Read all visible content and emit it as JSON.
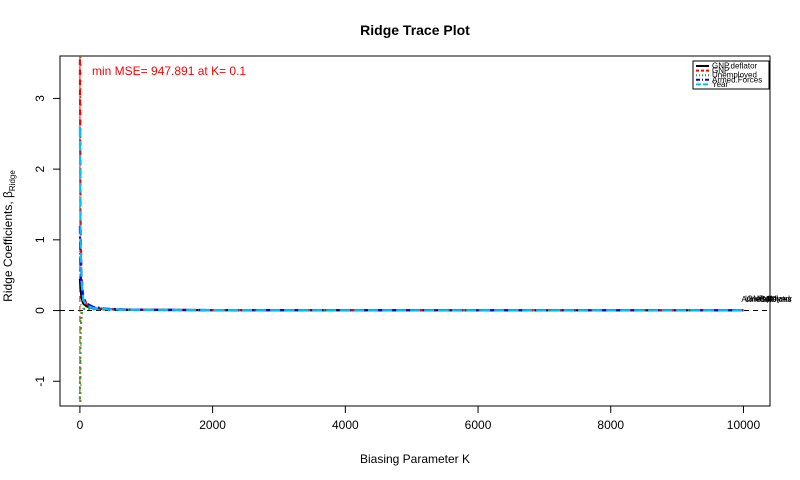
{
  "chart_data": {
    "type": "line",
    "title": "Ridge Trace Plot",
    "xlabel": "Biasing Parameter K",
    "ylabel_main": "Ridge Coefficients, ",
    "ylabel_beta": "β",
    "ylabel_sub": "Ridge",
    "xlim": [
      -300,
      10400
    ],
    "ylim": [
      -1.35,
      3.6
    ],
    "xticks": [
      0,
      2000,
      4000,
      6000,
      8000,
      10000
    ],
    "yticks": [
      -1,
      0,
      1,
      2,
      3
    ],
    "legend_position": "top-right",
    "annotation": "min MSE= 947.891 at K= 0.1",
    "annotation_color": "#ff0000",
    "min_mse_k": 0.1,
    "zero_line": 0,
    "end_label_value": 0.13,
    "x": [
      0,
      10,
      25,
      50,
      100,
      200,
      400,
      700,
      1000,
      2000,
      4000,
      6000,
      8000,
      10000
    ],
    "series": [
      {
        "name": "GNP.deflator",
        "color": "#000000",
        "dash": "",
        "values": [
          0.45,
          0.3,
          0.18,
          0.1,
          0.06,
          0.03,
          0.018,
          0.012,
          0.009,
          0.006,
          0.004,
          0.003,
          0.003,
          0.003
        ]
      },
      {
        "name": "GNP",
        "color": "#ff0000",
        "dash": "6,4",
        "values": [
          3.55,
          1.2,
          0.5,
          0.2,
          0.09,
          0.04,
          0.02,
          0.013,
          0.01,
          0.006,
          0.004,
          0.003,
          0.003,
          0.003
        ]
      },
      {
        "name": "Unemployed",
        "color": "#2ca02c",
        "dash": "2,3",
        "values": [
          -1.25,
          -0.3,
          -0.05,
          0.02,
          0.03,
          0.02,
          0.012,
          0.009,
          0.007,
          0.005,
          0.003,
          0.003,
          0.002,
          0.002
        ]
      },
      {
        "name": "Armed.Forces",
        "color": "#0000ff",
        "dash": "8,3,2,3",
        "values": [
          1.2,
          0.55,
          0.3,
          0.18,
          0.1,
          0.05,
          0.025,
          0.015,
          0.011,
          0.007,
          0.004,
          0.003,
          0.003,
          0.003
        ]
      },
      {
        "name": "Year",
        "color": "#00bfff",
        "dash": "10,4",
        "values": [
          2.6,
          1.0,
          0.4,
          0.15,
          0.07,
          0.035,
          0.018,
          0.012,
          0.009,
          0.006,
          0.004,
          0.003,
          0.003,
          0.003
        ]
      }
    ]
  }
}
